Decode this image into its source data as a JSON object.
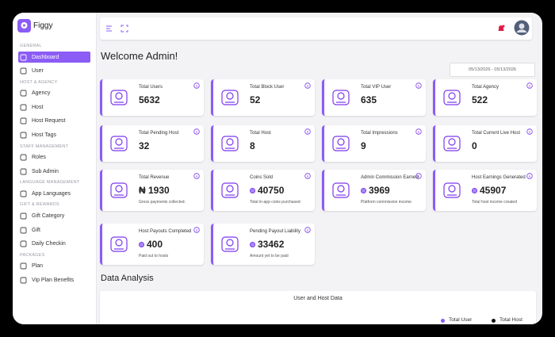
{
  "app": {
    "name": "Figgy"
  },
  "sidebar": {
    "sections": [
      {
        "title": "GENERAL",
        "items": [
          {
            "label": "Dashboard",
            "active": true
          },
          {
            "label": "User"
          }
        ]
      },
      {
        "title": "HOST & AGENCY",
        "items": [
          {
            "label": "Agency"
          },
          {
            "label": "Host"
          },
          {
            "label": "Host Request"
          },
          {
            "label": "Host Tags"
          }
        ]
      },
      {
        "title": "STAFF MANAGEMENT",
        "items": [
          {
            "label": "Roles"
          },
          {
            "label": "Sub Admin"
          }
        ]
      },
      {
        "title": "LANGUAGE MANAGEMENT",
        "items": [
          {
            "label": "App Languages"
          }
        ]
      },
      {
        "title": "GIFT & REWARDS",
        "items": [
          {
            "label": "Gift Category"
          },
          {
            "label": "Gift"
          },
          {
            "label": "Daily Checkin"
          }
        ]
      },
      {
        "title": "PACKAGES",
        "items": [
          {
            "label": "Plan"
          },
          {
            "label": "Vip Plan Benefits"
          }
        ]
      }
    ]
  },
  "page_title": "Welcome Admin!",
  "date_range": "05/13/2026 - 05/13/2026",
  "cards": [
    {
      "label": "Total Users",
      "value": "5632"
    },
    {
      "label": "Total Block User",
      "value": "52"
    },
    {
      "label": "Total VIP User",
      "value": "635"
    },
    {
      "label": "Total Agency",
      "value": "522"
    },
    {
      "label": "Total Pending Host",
      "value": "32"
    },
    {
      "label": "Total Host",
      "value": "8"
    },
    {
      "label": "Total Impressions",
      "value": "9"
    },
    {
      "label": "Total Current Live Host",
      "value": "0"
    },
    {
      "label": "Total Revenue",
      "value": "₦ 1930",
      "note": "Gross payments collected."
    },
    {
      "label": "Coins Sold",
      "value": "40750",
      "coin": true,
      "note": "Total in-app coins purchased"
    },
    {
      "label": "Admin Commission Earned",
      "value": "3969",
      "coin": true,
      "note": "Platform commission income"
    },
    {
      "label": "Host Earnings Generated",
      "value": "45907",
      "coin": true,
      "note": "Total host income created"
    },
    {
      "label": "Host Payouts Completed",
      "value": "400",
      "coin": true,
      "note": "Paid out to hosts"
    },
    {
      "label": "Pending Payout Liability",
      "value": "33462",
      "coin": true,
      "note": "Amount yet to be paid"
    }
  ],
  "section_title": "Data Analysis",
  "chart": {
    "title": "User and Host Data",
    "legend": [
      {
        "name": "Total User",
        "color": "#8b5cf6"
      },
      {
        "name": "Total Host",
        "color": "#111111"
      }
    ]
  }
}
